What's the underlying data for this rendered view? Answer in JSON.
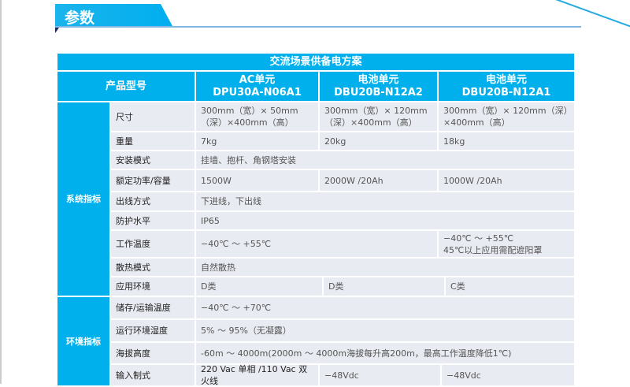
{
  "section_tab": {
    "label": "参数"
  },
  "colors": {
    "accent": "#00b0ec",
    "cell_bg": "#e9ebf2"
  },
  "table": {
    "title": "交流场景供备电方案",
    "header": {
      "label": "产品型号",
      "columns": [
        {
          "name": "AC单元",
          "model": "DPU30A-N06A1"
        },
        {
          "name": "电池单元",
          "model": "DBU20B-N12A2"
        },
        {
          "name": "电池单元",
          "model": "DBU20B-N12A1"
        }
      ]
    },
    "groups": [
      {
        "label": "系统指标"
      },
      {
        "label": "环境指标"
      }
    ],
    "rows": [
      {
        "label": "尺寸",
        "values": [
          "300mm（宽）× 50mm（深）×400mm（高）",
          "300mm（宽）× 120mm（深）×400mm（高）",
          "300mm（宽）× 120mm（深）×400mm（高）"
        ]
      },
      {
        "label": "重量",
        "values": [
          "7kg",
          "20kg",
          "18kg"
        ]
      },
      {
        "label": "安装模式",
        "values": [
          "挂墙、抱杆、角钢塔安装"
        ]
      },
      {
        "label": "额定功率/容量",
        "values": [
          "1500W",
          "2000W /20Ah",
          "1000W /20Ah"
        ]
      },
      {
        "label": "出线方式",
        "values": [
          "下进线，下出线"
        ]
      },
      {
        "label": "防护水平",
        "values": [
          "IP65"
        ]
      },
      {
        "label": "工作温度",
        "values": [
          "−40℃ ～ +55℃",
          "−40℃ ～ +55℃\n45℃以上应用需配遮阳罩"
        ]
      },
      {
        "label": "散热模式",
        "values": [
          "自然散热"
        ]
      },
      {
        "label": "应用环境",
        "values": [
          "D类",
          "D类",
          "C类"
        ]
      },
      {
        "label": "储存/运输温度",
        "values": [
          "−40℃ ～ +70℃"
        ]
      },
      {
        "label": "运行环境湿度",
        "values": [
          "5%  ～ 95%（无凝露）"
        ]
      },
      {
        "label": "海拔高度",
        "values": [
          "-60m ～ 4000m(2000m ～ 4000m海拔每升高200m，最高工作温度降低1℃)"
        ]
      },
      {
        "label": "输入制式",
        "values": [
          "220 Vac 单相 /110 Vac 双火线",
          "−48Vdc",
          "−48Vdc"
        ]
      }
    ]
  }
}
